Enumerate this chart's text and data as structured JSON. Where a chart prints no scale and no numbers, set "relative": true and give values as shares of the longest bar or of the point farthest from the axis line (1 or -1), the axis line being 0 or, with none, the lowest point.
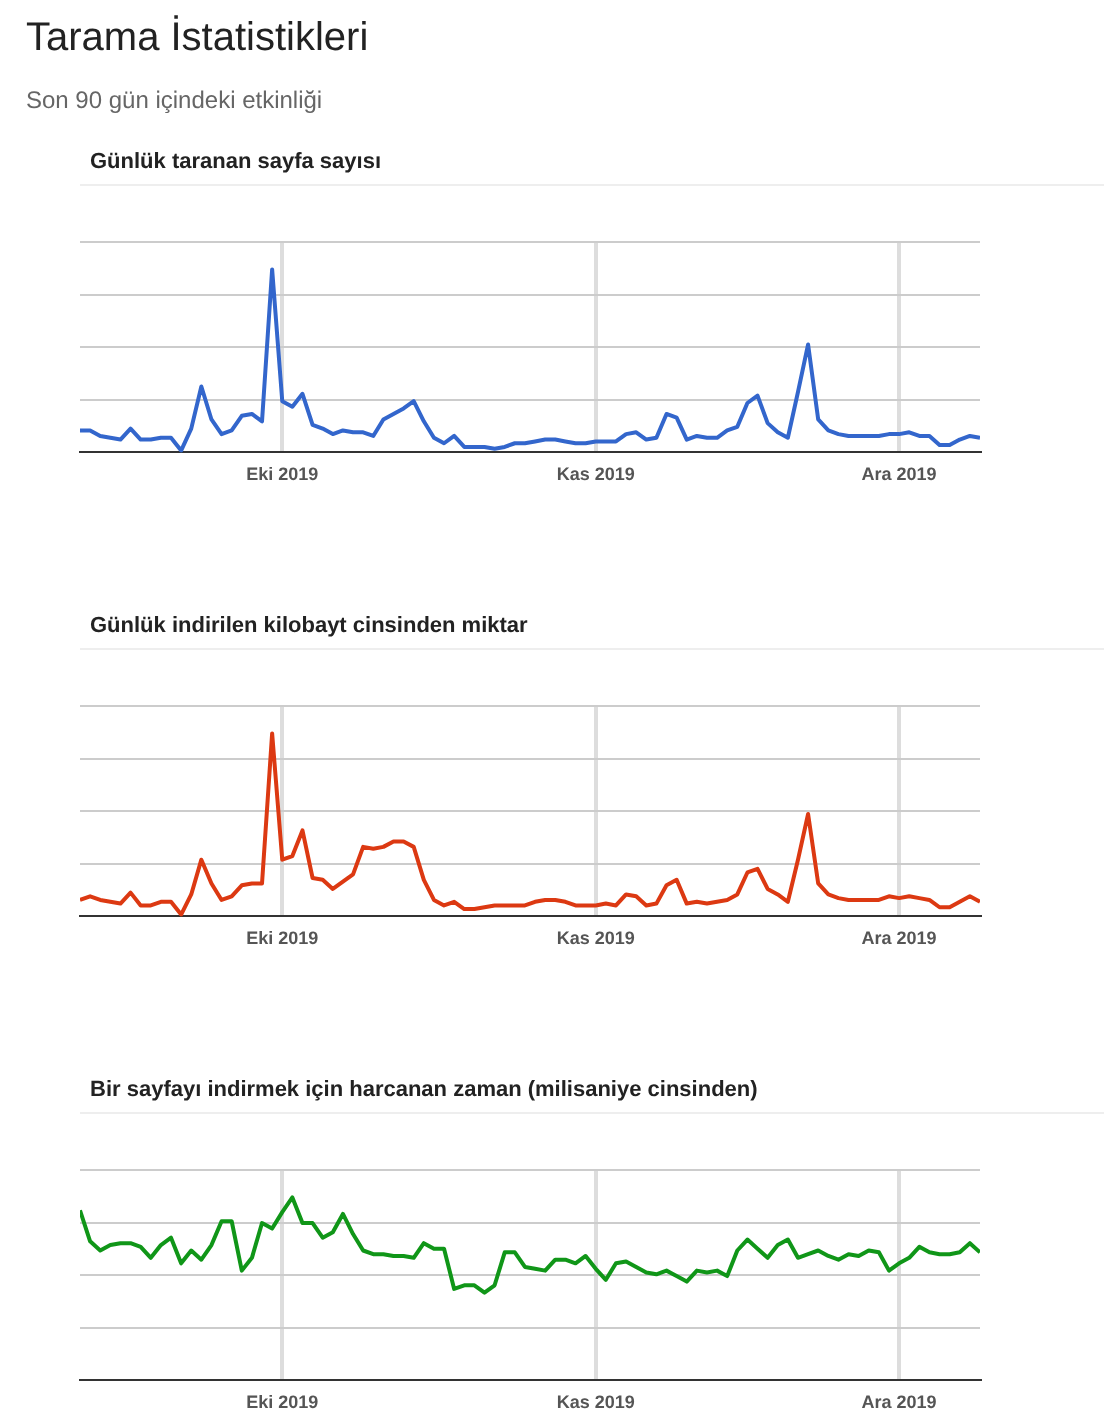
{
  "chart_data": [
    {
      "type": "other",
      "title": "Tarama İstatistikleri",
      "subtitle": "Son 90 gün içindeki etkinliği"
    },
    {
      "type": "line",
      "title": "Günlük taranan sayfa sayısı",
      "relative": true,
      "grid": true,
      "legend": false,
      "marker": "none",
      "line_style": "solid",
      "x": [
        "2019-09-11",
        "2019-09-12",
        "2019-09-13",
        "2019-09-14",
        "2019-09-15",
        "2019-09-16",
        "2019-09-17",
        "2019-09-18",
        "2019-09-19",
        "2019-09-20",
        "2019-09-21",
        "2019-09-22",
        "2019-09-23",
        "2019-09-24",
        "2019-09-25",
        "2019-09-26",
        "2019-09-27",
        "2019-09-28",
        "2019-09-29",
        "2019-09-30",
        "2019-10-01",
        "2019-10-02",
        "2019-10-03",
        "2019-10-04",
        "2019-10-05",
        "2019-10-06",
        "2019-10-07",
        "2019-10-08",
        "2019-10-09",
        "2019-10-10",
        "2019-10-11",
        "2019-10-12",
        "2019-10-13",
        "2019-10-14",
        "2019-10-15",
        "2019-10-16",
        "2019-10-17",
        "2019-10-18",
        "2019-10-19",
        "2019-10-20",
        "2019-10-21",
        "2019-10-22",
        "2019-10-23",
        "2019-10-24",
        "2019-10-25",
        "2019-10-26",
        "2019-10-27",
        "2019-10-28",
        "2019-10-29",
        "2019-10-30",
        "2019-10-31",
        "2019-11-01",
        "2019-11-02",
        "2019-11-03",
        "2019-11-04",
        "2019-11-05",
        "2019-11-06",
        "2019-11-07",
        "2019-11-08",
        "2019-11-09",
        "2019-11-10",
        "2019-11-11",
        "2019-11-12",
        "2019-11-13",
        "2019-11-14",
        "2019-11-15",
        "2019-11-16",
        "2019-11-17",
        "2019-11-18",
        "2019-11-19",
        "2019-11-20",
        "2019-11-21",
        "2019-11-22",
        "2019-11-23",
        "2019-11-24",
        "2019-11-25",
        "2019-11-26",
        "2019-11-27",
        "2019-11-28",
        "2019-11-29",
        "2019-11-30",
        "2019-12-01",
        "2019-12-02",
        "2019-12-03",
        "2019-12-04",
        "2019-12-05",
        "2019-12-06",
        "2019-12-07",
        "2019-12-08",
        "2019-12-09"
      ],
      "xlim": [
        "2019-09-11",
        "2019-12-09"
      ],
      "xticks": [
        {
          "value": "2019-10-01",
          "label": "Eki 2019"
        },
        {
          "value": "2019-11-01",
          "label": "Kas 2019"
        },
        {
          "value": "2019-12-01",
          "label": "Ara 2019"
        }
      ],
      "series": [
        {
          "color": "#3366cc",
          "values": [
            0.12,
            0.12,
            0.09,
            0.08,
            0.07,
            0.13,
            0.07,
            0.07,
            0.08,
            0.08,
            0.01,
            0.13,
            0.36,
            0.18,
            0.1,
            0.12,
            0.2,
            0.21,
            0.17,
            1,
            0.28,
            0.25,
            0.32,
            0.15,
            0.13,
            0.1,
            0.12,
            0.11,
            0.11,
            0.09,
            0.18,
            0.21,
            0.24,
            0.28,
            0.17,
            0.08,
            0.05,
            0.09,
            0.03,
            0.03,
            0.03,
            0.02,
            0.03,
            0.05,
            0.05,
            0.06,
            0.07,
            0.07,
            0.06,
            0.05,
            0.05,
            0.06,
            0.06,
            0.06,
            0.1,
            0.11,
            0.07,
            0.08,
            0.21,
            0.19,
            0.07,
            0.09,
            0.08,
            0.08,
            0.12,
            0.14,
            0.27,
            0.31,
            0.16,
            0.11,
            0.08,
            0.33,
            0.59,
            0.18,
            0.12,
            0.1,
            0.09,
            0.09,
            0.09,
            0.09,
            0.1,
            0.1,
            0.11,
            0.09,
            0.09,
            0.04,
            0.04,
            0.07,
            0.09,
            0.08
          ]
        }
      ]
    },
    {
      "type": "line",
      "title": "Günlük indirilen kilobayt cinsinden miktar",
      "relative": true,
      "grid": true,
      "legend": false,
      "marker": "none",
      "line_style": "solid",
      "x": [
        "2019-09-11",
        "2019-09-12",
        "2019-09-13",
        "2019-09-14",
        "2019-09-15",
        "2019-09-16",
        "2019-09-17",
        "2019-09-18",
        "2019-09-19",
        "2019-09-20",
        "2019-09-21",
        "2019-09-22",
        "2019-09-23",
        "2019-09-24",
        "2019-09-25",
        "2019-09-26",
        "2019-09-27",
        "2019-09-28",
        "2019-09-29",
        "2019-09-30",
        "2019-10-01",
        "2019-10-02",
        "2019-10-03",
        "2019-10-04",
        "2019-10-05",
        "2019-10-06",
        "2019-10-07",
        "2019-10-08",
        "2019-10-09",
        "2019-10-10",
        "2019-10-11",
        "2019-10-12",
        "2019-10-13",
        "2019-10-14",
        "2019-10-15",
        "2019-10-16",
        "2019-10-17",
        "2019-10-18",
        "2019-10-19",
        "2019-10-20",
        "2019-10-21",
        "2019-10-22",
        "2019-10-23",
        "2019-10-24",
        "2019-10-25",
        "2019-10-26",
        "2019-10-27",
        "2019-10-28",
        "2019-10-29",
        "2019-10-30",
        "2019-10-31",
        "2019-11-01",
        "2019-11-02",
        "2019-11-03",
        "2019-11-04",
        "2019-11-05",
        "2019-11-06",
        "2019-11-07",
        "2019-11-08",
        "2019-11-09",
        "2019-11-10",
        "2019-11-11",
        "2019-11-12",
        "2019-11-13",
        "2019-11-14",
        "2019-11-15",
        "2019-11-16",
        "2019-11-17",
        "2019-11-18",
        "2019-11-19",
        "2019-11-20",
        "2019-11-21",
        "2019-11-22",
        "2019-11-23",
        "2019-11-24",
        "2019-11-25",
        "2019-11-26",
        "2019-11-27",
        "2019-11-28",
        "2019-11-29",
        "2019-11-30",
        "2019-12-01",
        "2019-12-02",
        "2019-12-03",
        "2019-12-04",
        "2019-12-05",
        "2019-12-06",
        "2019-12-07",
        "2019-12-08",
        "2019-12-09"
      ],
      "xlim": [
        "2019-09-11",
        "2019-12-09"
      ],
      "xticks": [
        {
          "value": "2019-10-01",
          "label": "Eki 2019"
        },
        {
          "value": "2019-11-01",
          "label": "Kas 2019"
        },
        {
          "value": "2019-12-01",
          "label": "Ara 2019"
        }
      ],
      "series": [
        {
          "color": "#dc3912",
          "values": [
            0.09,
            0.11,
            0.09,
            0.08,
            0.07,
            0.13,
            0.06,
            0.06,
            0.08,
            0.08,
            0.01,
            0.12,
            0.31,
            0.18,
            0.09,
            0.11,
            0.17,
            0.18,
            0.18,
            1,
            0.31,
            0.33,
            0.47,
            0.21,
            0.2,
            0.15,
            0.19,
            0.23,
            0.38,
            0.37,
            0.38,
            0.41,
            0.41,
            0.38,
            0.2,
            0.09,
            0.06,
            0.08,
            0.04,
            0.04,
            0.05,
            0.06,
            0.06,
            0.06,
            0.06,
            0.08,
            0.09,
            0.09,
            0.08,
            0.06,
            0.06,
            0.06,
            0.07,
            0.06,
            0.12,
            0.11,
            0.06,
            0.07,
            0.17,
            0.2,
            0.07,
            0.08,
            0.07,
            0.08,
            0.09,
            0.12,
            0.24,
            0.26,
            0.15,
            0.12,
            0.08,
            0.31,
            0.56,
            0.18,
            0.12,
            0.1,
            0.09,
            0.09,
            0.09,
            0.09,
            0.11,
            0.1,
            0.11,
            0.1,
            0.09,
            0.05,
            0.05,
            0.08,
            0.11,
            0.08
          ]
        }
      ]
    },
    {
      "type": "line",
      "title": "Bir sayfayı indirmek için harcanan zaman (milisaniye cinsinden)",
      "relative": true,
      "grid": true,
      "legend": false,
      "marker": "none",
      "line_style": "solid",
      "x": [
        "2019-09-11",
        "2019-09-12",
        "2019-09-13",
        "2019-09-14",
        "2019-09-15",
        "2019-09-16",
        "2019-09-17",
        "2019-09-18",
        "2019-09-19",
        "2019-09-20",
        "2019-09-21",
        "2019-09-22",
        "2019-09-23",
        "2019-09-24",
        "2019-09-25",
        "2019-09-26",
        "2019-09-27",
        "2019-09-28",
        "2019-09-29",
        "2019-09-30",
        "2019-10-01",
        "2019-10-02",
        "2019-10-03",
        "2019-10-04",
        "2019-10-05",
        "2019-10-06",
        "2019-10-07",
        "2019-10-08",
        "2019-10-09",
        "2019-10-10",
        "2019-10-11",
        "2019-10-12",
        "2019-10-13",
        "2019-10-14",
        "2019-10-15",
        "2019-10-16",
        "2019-10-17",
        "2019-10-18",
        "2019-10-19",
        "2019-10-20",
        "2019-10-21",
        "2019-10-22",
        "2019-10-23",
        "2019-10-24",
        "2019-10-25",
        "2019-10-26",
        "2019-10-27",
        "2019-10-28",
        "2019-10-29",
        "2019-10-30",
        "2019-10-31",
        "2019-11-01",
        "2019-11-02",
        "2019-11-03",
        "2019-11-04",
        "2019-11-05",
        "2019-11-06",
        "2019-11-07",
        "2019-11-08",
        "2019-11-09",
        "2019-11-10",
        "2019-11-11",
        "2019-11-12",
        "2019-11-13",
        "2019-11-14",
        "2019-11-15",
        "2019-11-16",
        "2019-11-17",
        "2019-11-18",
        "2019-11-19",
        "2019-11-20",
        "2019-11-21",
        "2019-11-22",
        "2019-11-23",
        "2019-11-24",
        "2019-11-25",
        "2019-11-26",
        "2019-11-27",
        "2019-11-28",
        "2019-11-29",
        "2019-11-30",
        "2019-12-01",
        "2019-12-02",
        "2019-12-03",
        "2019-12-04",
        "2019-12-05",
        "2019-12-06",
        "2019-12-07",
        "2019-12-08",
        "2019-12-09"
      ],
      "xlim": [
        "2019-09-11",
        "2019-12-09"
      ],
      "xticks": [
        {
          "value": "2019-10-01",
          "label": "Eki 2019"
        },
        {
          "value": "2019-11-01",
          "label": "Kas 2019"
        },
        {
          "value": "2019-12-01",
          "label": "Ara 2019"
        }
      ],
      "series": [
        {
          "color": "#109618",
          "values": [
            0.93,
            0.76,
            0.71,
            0.74,
            0.75,
            0.75,
            0.73,
            0.67,
            0.74,
            0.78,
            0.64,
            0.71,
            0.66,
            0.74,
            0.87,
            0.87,
            0.6,
            0.67,
            0.86,
            0.83,
            0.92,
            1,
            0.86,
            0.86,
            0.78,
            0.81,
            0.91,
            0.8,
            0.71,
            0.69,
            0.69,
            0.68,
            0.68,
            0.67,
            0.75,
            0.72,
            0.72,
            0.5,
            0.52,
            0.52,
            0.48,
            0.52,
            0.7,
            0.7,
            0.62,
            0.61,
            0.6,
            0.66,
            0.66,
            0.64,
            0.68,
            0.61,
            0.55,
            0.64,
            0.65,
            0.62,
            0.59,
            0.58,
            0.6,
            0.57,
            0.54,
            0.6,
            0.59,
            0.6,
            0.57,
            0.71,
            0.77,
            0.72,
            0.67,
            0.74,
            0.77,
            0.67,
            0.69,
            0.71,
            0.68,
            0.66,
            0.69,
            0.68,
            0.71,
            0.7,
            0.6,
            0.64,
            0.67,
            0.73,
            0.7,
            0.69,
            0.69,
            0.7,
            0.75,
            0.7
          ]
        }
      ]
    }
  ]
}
